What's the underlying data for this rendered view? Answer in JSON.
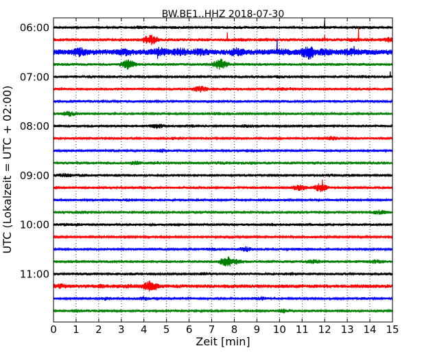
{
  "chart_data": {
    "type": "line",
    "title": "BW.BE1..HHZ 2018-07-30",
    "xlabel": "Zeit  [min]",
    "ylabel": "UTC (Lokalzeit = UTC + 02:00)",
    "xlim": [
      0,
      15
    ],
    "x_ticks": [
      "0",
      "1",
      "2",
      "3",
      "4",
      "5",
      "6",
      "7",
      "8",
      "9",
      "10",
      "11",
      "12",
      "13",
      "14",
      "15"
    ],
    "y_ticks": [
      "06:00",
      "07:00",
      "08:00",
      "09:00",
      "10:00",
      "11:00"
    ],
    "grid": "vertical dotted",
    "trace_colors": [
      "#000000",
      "#ff0000",
      "#0000ff",
      "#008000"
    ],
    "trace_interval_min": 15,
    "series": [
      {
        "start": "06:00",
        "color": "#000000",
        "level": 0.2,
        "events": [
          [
            3.8,
            0.3
          ],
          [
            5.6,
            0.25
          ],
          [
            7.1,
            0.25
          ],
          [
            8.3,
            0.3
          ],
          [
            9.3,
            0.25
          ],
          [
            12.0,
            0.3
          ],
          [
            13.6,
            0.3
          ],
          [
            14.0,
            0.25
          ]
        ],
        "spikes": [
          [
            12.0,
            1.0
          ]
        ]
      },
      {
        "start": "06:15",
        "color": "#ff0000",
        "level": 0.25,
        "events": [
          [
            4.3,
            1.0
          ],
          [
            8.3,
            0.3
          ],
          [
            9.5,
            0.3
          ],
          [
            11.9,
            0.3
          ],
          [
            13.3,
            0.35
          ],
          [
            14.0,
            0.3
          ],
          [
            14.8,
            0.5
          ]
        ],
        "spikes": [
          [
            7.7,
            1.2
          ],
          [
            12.0,
            1.0
          ],
          [
            13.5,
            1.8
          ]
        ]
      },
      {
        "start": "06:30",
        "color": "#0000ff",
        "level": 0.45,
        "events": [
          [
            1.2,
            0.9
          ],
          [
            3.2,
            0.8
          ],
          [
            4.7,
            0.9
          ],
          [
            5.6,
            0.8
          ],
          [
            6.5,
            0.7
          ],
          [
            8.1,
            0.8
          ],
          [
            10.1,
            0.6
          ],
          [
            11.3,
            1.3
          ],
          [
            12.0,
            0.7
          ],
          [
            13.2,
            0.7
          ]
        ],
        "spikes": [
          [
            9.9,
            1.6
          ],
          [
            4.6,
            1.0
          ],
          [
            13.3,
            1.1
          ]
        ]
      },
      {
        "start": "06:45",
        "color": "#008000",
        "level": 0.22,
        "events": [
          [
            3.3,
            0.9
          ],
          [
            7.4,
            1.0
          ],
          [
            10.0,
            0.2
          ],
          [
            12.6,
            0.2
          ],
          [
            13.8,
            0.25
          ]
        ],
        "spikes": []
      },
      {
        "start": "07:00",
        "color": "#000000",
        "level": 0.2,
        "events": [
          [
            2.5,
            0.25
          ],
          [
            6.0,
            0.25
          ],
          [
            10.0,
            0.3
          ],
          [
            11.8,
            0.25
          ],
          [
            13.7,
            0.3
          ]
        ],
        "spikes": [
          [
            14.9,
            0.5
          ]
        ]
      },
      {
        "start": "07:15",
        "color": "#ff0000",
        "level": 0.2,
        "events": [
          [
            3.0,
            0.25
          ],
          [
            6.5,
            0.6
          ],
          [
            7.7,
            0.25
          ],
          [
            10.0,
            0.35
          ],
          [
            10.5,
            0.3
          ]
        ],
        "spikes": []
      },
      {
        "start": "07:30",
        "color": "#0000ff",
        "level": 0.2,
        "events": [
          [
            1.1,
            0.25
          ],
          [
            2.1,
            0.3
          ],
          [
            4.3,
            0.25
          ],
          [
            7.0,
            0.25
          ],
          [
            9.1,
            0.2
          ],
          [
            12.8,
            0.2
          ]
        ],
        "spikes": []
      },
      {
        "start": "07:45",
        "color": "#008000",
        "level": 0.2,
        "events": [
          [
            0.7,
            0.5
          ],
          [
            5.0,
            0.25
          ],
          [
            7.2,
            0.3
          ],
          [
            11.0,
            0.2
          ],
          [
            14.5,
            0.25
          ]
        ],
        "spikes": []
      },
      {
        "start": "08:00",
        "color": "#000000",
        "level": 0.2,
        "events": [
          [
            4.6,
            0.45
          ],
          [
            6.1,
            0.3
          ],
          [
            8.5,
            0.3
          ],
          [
            9.0,
            0.25
          ],
          [
            12.1,
            0.2
          ]
        ],
        "spikes": []
      },
      {
        "start": "08:15",
        "color": "#ff0000",
        "level": 0.2,
        "events": [
          [
            2.4,
            0.25
          ],
          [
            5.4,
            0.3
          ],
          [
            7.8,
            0.25
          ],
          [
            12.3,
            0.4
          ],
          [
            13.5,
            0.2
          ]
        ],
        "spikes": []
      },
      {
        "start": "08:30",
        "color": "#0000ff",
        "level": 0.2,
        "events": [
          [
            2.8,
            0.25
          ],
          [
            4.8,
            0.35
          ],
          [
            8.8,
            0.3
          ],
          [
            12.3,
            0.2
          ],
          [
            14.0,
            0.2
          ]
        ],
        "spikes": []
      },
      {
        "start": "08:45",
        "color": "#008000",
        "level": 0.22,
        "events": [
          [
            3.6,
            0.4
          ],
          [
            4.6,
            0.3
          ],
          [
            7.4,
            0.3
          ],
          [
            8.8,
            0.3
          ],
          [
            11.6,
            0.25
          ],
          [
            13.8,
            0.25
          ]
        ],
        "spikes": []
      },
      {
        "start": "09:00",
        "color": "#000000",
        "level": 0.2,
        "events": [
          [
            0.5,
            0.4
          ],
          [
            1.2,
            0.3
          ],
          [
            2.8,
            0.25
          ],
          [
            5.4,
            0.25
          ],
          [
            9.4,
            0.25
          ],
          [
            12.2,
            0.3
          ],
          [
            13.2,
            0.25
          ]
        ],
        "spikes": []
      },
      {
        "start": "09:15",
        "color": "#ff0000",
        "level": 0.2,
        "events": [
          [
            0.1,
            0.3
          ],
          [
            4.0,
            0.3
          ],
          [
            10.9,
            0.6
          ],
          [
            11.8,
            0.8
          ],
          [
            12.7,
            0.25
          ]
        ],
        "spikes": [
          [
            11.9,
            1.6
          ]
        ]
      },
      {
        "start": "09:30",
        "color": "#0000ff",
        "level": 0.18,
        "events": [
          [
            3.3,
            0.3
          ],
          [
            4.3,
            0.2
          ],
          [
            9.8,
            0.2
          ]
        ],
        "spikes": []
      },
      {
        "start": "09:45",
        "color": "#008000",
        "level": 0.2,
        "events": [
          [
            1.3,
            0.3
          ],
          [
            3.8,
            0.25
          ],
          [
            6.4,
            0.2
          ],
          [
            11.1,
            0.25
          ],
          [
            14.4,
            0.45
          ]
        ],
        "spikes": []
      },
      {
        "start": "10:00",
        "color": "#000000",
        "level": 0.2,
        "events": [
          [
            0.5,
            0.3
          ],
          [
            1.0,
            0.3
          ],
          [
            2.4,
            0.25
          ],
          [
            5.0,
            0.25
          ],
          [
            7.8,
            0.25
          ],
          [
            9.7,
            0.3
          ],
          [
            12.0,
            0.25
          ]
        ],
        "spikes": []
      },
      {
        "start": "10:15",
        "color": "#ff0000",
        "level": 0.15,
        "events": [
          [
            6.5,
            0.2
          ],
          [
            11.5,
            0.2
          ]
        ],
        "spikes": []
      },
      {
        "start": "10:30",
        "color": "#0000ff",
        "level": 0.18,
        "events": [
          [
            7.0,
            0.3
          ],
          [
            8.5,
            0.5
          ],
          [
            11.0,
            0.25
          ],
          [
            12.5,
            0.2
          ]
        ],
        "spikes": []
      },
      {
        "start": "10:45",
        "color": "#008000",
        "level": 0.22,
        "events": [
          [
            0.5,
            0.25
          ],
          [
            2.0,
            0.25
          ],
          [
            4.3,
            0.25
          ],
          [
            7.7,
            1.0
          ],
          [
            8.1,
            0.5
          ],
          [
            11.5,
            0.45
          ],
          [
            14.3,
            0.4
          ]
        ],
        "spikes": []
      },
      {
        "start": "11:00",
        "color": "#000000",
        "level": 0.2,
        "events": [
          [
            1.2,
            0.25
          ],
          [
            3.5,
            0.25
          ],
          [
            6.7,
            0.3
          ],
          [
            10.5,
            0.3
          ],
          [
            14.4,
            0.25
          ]
        ],
        "spikes": []
      },
      {
        "start": "11:15",
        "color": "#ff0000",
        "level": 0.3,
        "events": [
          [
            0.3,
            0.5
          ],
          [
            2.0,
            0.4
          ],
          [
            3.4,
            0.4
          ],
          [
            4.3,
            1.1
          ],
          [
            5.0,
            0.3
          ],
          [
            8.5,
            0.25
          ],
          [
            12.0,
            0.3
          ]
        ],
        "spikes": []
      },
      {
        "start": "11:30",
        "color": "#0000ff",
        "level": 0.18,
        "events": [
          [
            2.3,
            0.35
          ],
          [
            4.0,
            0.4
          ],
          [
            5.5,
            0.2
          ],
          [
            9.2,
            0.4
          ],
          [
            12.0,
            0.2
          ],
          [
            13.7,
            0.25
          ]
        ],
        "spikes": []
      },
      {
        "start": "11:45",
        "color": "#008000",
        "level": 0.2,
        "events": [
          [
            1.0,
            0.3
          ],
          [
            5.5,
            0.2
          ],
          [
            8.0,
            0.2
          ],
          [
            10.2,
            0.4
          ],
          [
            12.9,
            0.25
          ]
        ],
        "spikes": []
      }
    ]
  }
}
